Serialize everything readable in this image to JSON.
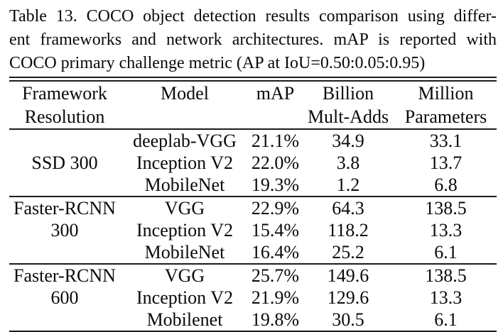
{
  "caption": {
    "lines": [
      "Table 13. COCO object detection results comparison using differ-",
      "ent frameworks and network architectures. mAP is reported with",
      "COCO primary challenge metric (AP at IoU=0.50:0.05:0.95)"
    ]
  },
  "table": {
    "header": {
      "col1_line1": "Framework",
      "col1_line2": "Resolution",
      "col2": "Model",
      "col3": "mAP",
      "col4_line1": "Billion",
      "col4_line2": "Mult-Adds",
      "col5_line1": "Million",
      "col5_line2": "Parameters"
    },
    "rows": [
      {
        "framework": "",
        "model": "deeplab-VGG",
        "map": "21.1%",
        "mult_adds": "34.9",
        "params": "33.1"
      },
      {
        "framework": "SSD 300",
        "model": "Inception V2",
        "map": "22.0%",
        "mult_adds": "3.8",
        "params": "13.7"
      },
      {
        "framework": "",
        "model": "MobileNet",
        "map": "19.3%",
        "mult_adds": "1.2",
        "params": "6.8"
      },
      {
        "framework": "Faster-RCNN",
        "model": "VGG",
        "map": "22.9%",
        "mult_adds": "64.3",
        "params": "138.5"
      },
      {
        "framework": "300",
        "model": "Inception V2",
        "map": "15.4%",
        "mult_adds": "118.2",
        "params": "13.3"
      },
      {
        "framework": "",
        "model": "MobileNet",
        "map": "16.4%",
        "mult_adds": "25.2",
        "params": "6.1"
      },
      {
        "framework": "Faster-RCNN",
        "model": "VGG",
        "map": "25.7%",
        "mult_adds": "149.6",
        "params": "138.5"
      },
      {
        "framework": "600",
        "model": "Inception V2",
        "map": "21.9%",
        "mult_adds": "129.6",
        "params": "13.3"
      },
      {
        "framework": "",
        "model": "Mobilenet",
        "map": "19.8%",
        "mult_adds": "30.5",
        "params": "6.1"
      }
    ]
  },
  "colors": {
    "background": "#ffffff",
    "text": "#0a0a0a",
    "rule": "#1c1c1c"
  }
}
